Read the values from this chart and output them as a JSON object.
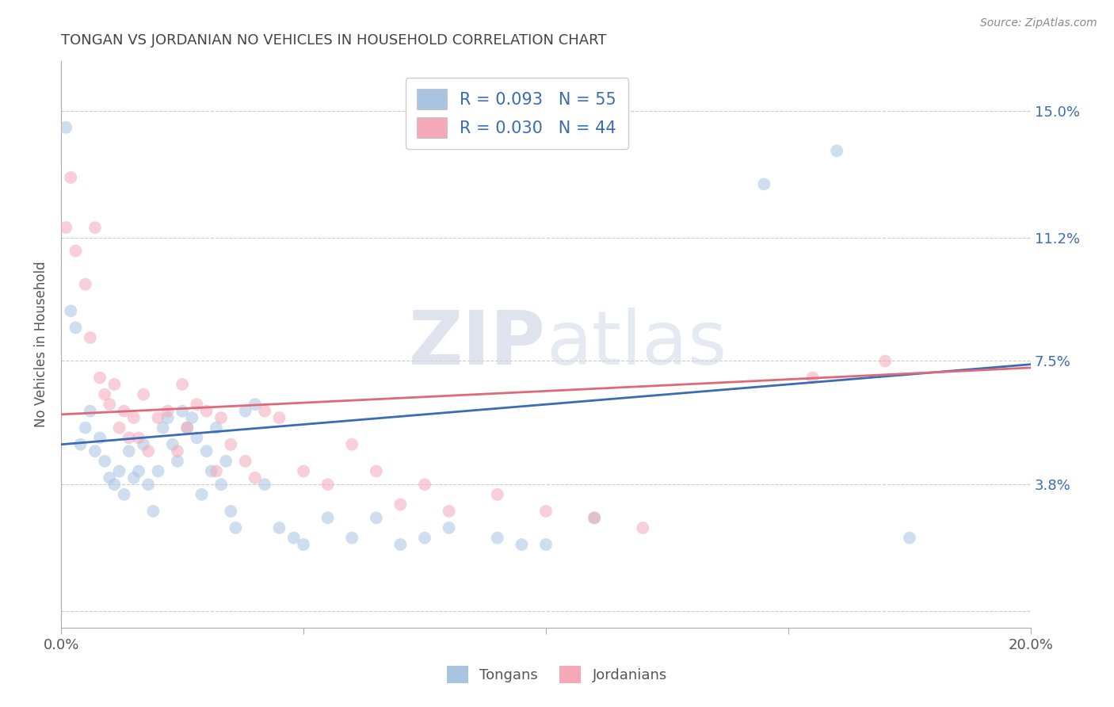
{
  "title": "TONGAN VS JORDANIAN NO VEHICLES IN HOUSEHOLD CORRELATION CHART",
  "source": "Source: ZipAtlas.com",
  "ylabel": "No Vehicles in Household",
  "xlim": [
    0.0,
    0.2
  ],
  "ylim": [
    -0.005,
    0.165
  ],
  "yticks": [
    0.0,
    0.038,
    0.075,
    0.112,
    0.15
  ],
  "ytick_labels": [
    "",
    "3.8%",
    "7.5%",
    "11.2%",
    "15.0%"
  ],
  "xticks": [
    0.0,
    0.05,
    0.1,
    0.15,
    0.2
  ],
  "xtick_labels": [
    "0.0%",
    "",
    "",
    "",
    "20.0%"
  ],
  "blue_R": "R = 0.093",
  "blue_N": "N = 55",
  "pink_R": "R = 0.030",
  "pink_N": "N = 44",
  "blue_color": "#a8c4e0",
  "pink_color": "#f4a8b8",
  "blue_line_color": "#3a6cb5",
  "pink_line_color": "#e06878",
  "legend_text_color": "#3a6cb5",
  "title_color": "#444444",
  "grid_color": "#cccccc",
  "tongans_x": [
    0.001,
    0.002,
    0.003,
    0.004,
    0.005,
    0.006,
    0.007,
    0.008,
    0.009,
    0.01,
    0.011,
    0.012,
    0.013,
    0.014,
    0.015,
    0.016,
    0.017,
    0.018,
    0.019,
    0.02,
    0.021,
    0.022,
    0.023,
    0.024,
    0.025,
    0.026,
    0.027,
    0.028,
    0.029,
    0.03,
    0.031,
    0.032,
    0.033,
    0.034,
    0.035,
    0.036,
    0.038,
    0.04,
    0.042,
    0.045,
    0.048,
    0.05,
    0.055,
    0.06,
    0.065,
    0.07,
    0.075,
    0.08,
    0.09,
    0.095,
    0.1,
    0.11,
    0.145,
    0.16,
    0.175
  ],
  "tongans_y": [
    0.145,
    0.09,
    0.085,
    0.05,
    0.055,
    0.06,
    0.048,
    0.052,
    0.045,
    0.04,
    0.038,
    0.042,
    0.035,
    0.048,
    0.04,
    0.042,
    0.05,
    0.038,
    0.03,
    0.042,
    0.055,
    0.058,
    0.05,
    0.045,
    0.06,
    0.055,
    0.058,
    0.052,
    0.035,
    0.048,
    0.042,
    0.055,
    0.038,
    0.045,
    0.03,
    0.025,
    0.06,
    0.062,
    0.038,
    0.025,
    0.022,
    0.02,
    0.028,
    0.022,
    0.028,
    0.02,
    0.022,
    0.025,
    0.022,
    0.02,
    0.02,
    0.028,
    0.128,
    0.138,
    0.022
  ],
  "jordanians_x": [
    0.001,
    0.002,
    0.003,
    0.005,
    0.006,
    0.007,
    0.008,
    0.009,
    0.01,
    0.011,
    0.012,
    0.013,
    0.014,
    0.015,
    0.016,
    0.017,
    0.018,
    0.02,
    0.022,
    0.024,
    0.025,
    0.026,
    0.028,
    0.03,
    0.032,
    0.033,
    0.035,
    0.038,
    0.04,
    0.042,
    0.045,
    0.05,
    0.055,
    0.06,
    0.065,
    0.07,
    0.075,
    0.08,
    0.09,
    0.1,
    0.11,
    0.12,
    0.155,
    0.17
  ],
  "jordanians_y": [
    0.115,
    0.13,
    0.108,
    0.098,
    0.082,
    0.115,
    0.07,
    0.065,
    0.062,
    0.068,
    0.055,
    0.06,
    0.052,
    0.058,
    0.052,
    0.065,
    0.048,
    0.058,
    0.06,
    0.048,
    0.068,
    0.055,
    0.062,
    0.06,
    0.042,
    0.058,
    0.05,
    0.045,
    0.04,
    0.06,
    0.058,
    0.042,
    0.038,
    0.05,
    0.042,
    0.032,
    0.038,
    0.03,
    0.035,
    0.03,
    0.028,
    0.025,
    0.07,
    0.075
  ],
  "watermark_zip": "ZIP",
  "watermark_atlas": "atlas",
  "marker_size": 130,
  "alpha": 0.55
}
